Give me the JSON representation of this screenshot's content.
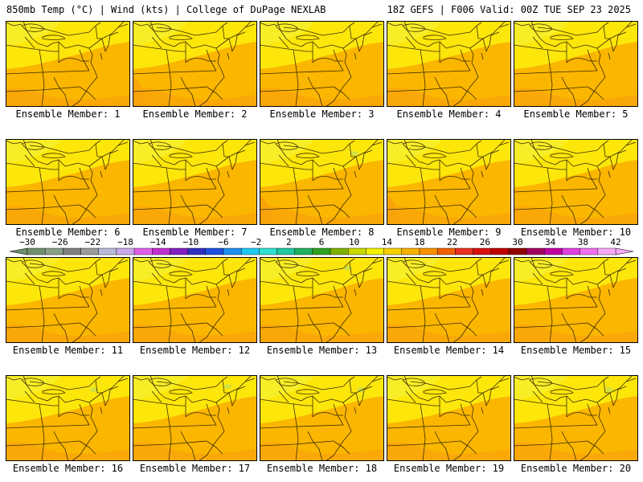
{
  "header": {
    "left": "850mb Temp (°C) | Wind (kts) | College of DuPage NEXLAB",
    "right": "18Z GEFS | F006 Valid: 00Z TUE SEP 23 2025"
  },
  "caption_prefix": "Ensemble Member:",
  "members": [
    "1",
    "2",
    "3",
    "4",
    "5",
    "6",
    "7",
    "8",
    "9",
    "10",
    "11",
    "12",
    "13",
    "14",
    "15",
    "16",
    "17",
    "18",
    "19",
    "20"
  ],
  "colorbar": {
    "labels": [
      "−30",
      "−26",
      "−22",
      "−18",
      "−14",
      "−10",
      "−6",
      "−2",
      "2",
      "6",
      "10",
      "14",
      "18",
      "22",
      "26",
      "30",
      "34",
      "38",
      "42"
    ],
    "colors": [
      "#6f8f6f",
      "#8a9e8a",
      "#7f7f7f",
      "#9a9a9a",
      "#b8b8d8",
      "#c8a8e8",
      "#e060e8",
      "#c030d0",
      "#8020c0",
      "#3030c0",
      "#2050e0",
      "#2090f0",
      "#20c8f0",
      "#30e0d0",
      "#20c8a0",
      "#20b060",
      "#30a020",
      "#80b000",
      "#c8d800",
      "#f0f000",
      "#f8d000",
      "#f8b000",
      "#f89000",
      "#f06000",
      "#e83020",
      "#d81010",
      "#c00000",
      "#900000",
      "#a00060",
      "#c000a0",
      "#e040e0",
      "#f070f0",
      "#f8a8f8"
    ]
  },
  "map_colors": {
    "base": "#fbb600",
    "warm": "#f9a30b",
    "cool": "#fde70a",
    "cold": "#f7ee2a",
    "green": "#c9e14c",
    "boundary": "#3a2a00"
  }
}
